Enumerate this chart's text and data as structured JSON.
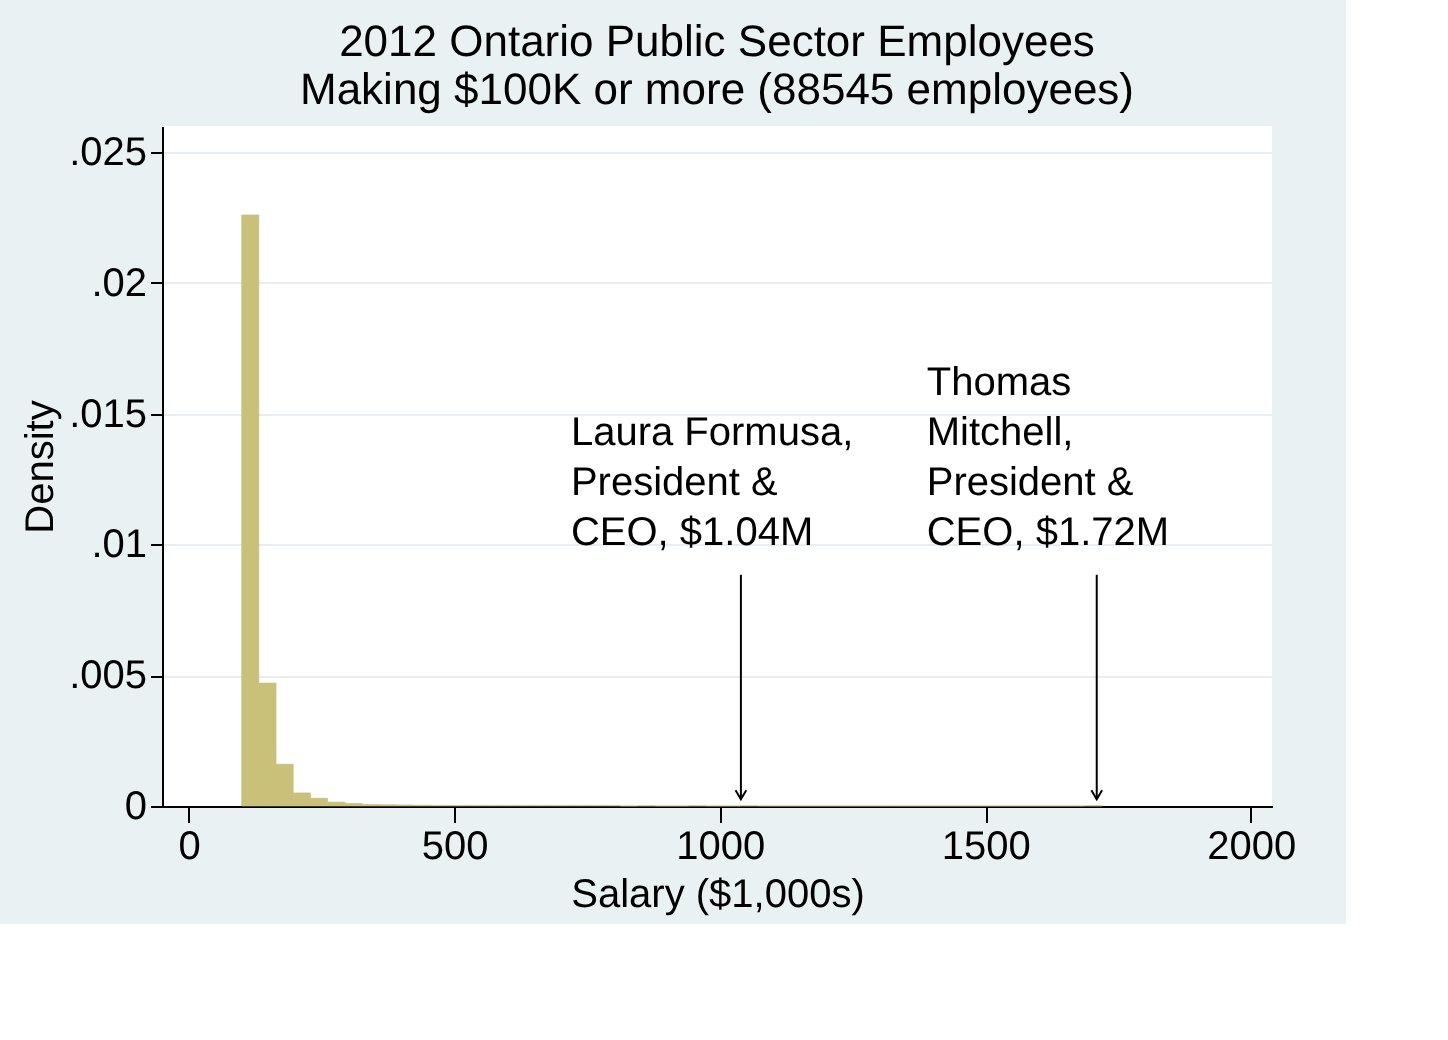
{
  "chart_data": {
    "type": "histogram",
    "title": "2012 Ontario Public Sector Employees\nMaking $100K or more (88545 employees)",
    "xlabel": "Salary ($1,000s)",
    "ylabel": "Density",
    "bins": [
      100,
      132.4,
      164.8,
      197.2,
      229.6,
      262,
      294.4,
      326.8,
      359.2,
      391.6,
      424,
      456.4,
      488.8,
      521.2,
      553.6,
      586,
      618.4,
      650.8,
      683.2,
      715.6,
      748,
      780.4,
      812.8,
      845.2,
      877.6,
      910,
      942.4,
      974.8,
      1007.2,
      1039.6,
      1072,
      1104.4,
      1136.8,
      1169.2,
      1201.6,
      1234,
      1266.4,
      1298.8,
      1331.2,
      1363.6,
      1396,
      1428.4,
      1460.8,
      1493.2,
      1525.6,
      1558,
      1590.4,
      1622.8,
      1655.2,
      1687.6,
      1720
    ],
    "values": [
      0.0226,
      0.0047,
      0.0016,
      0.0005,
      0.0003,
      0.00015,
      0.0001,
      6e-05,
      5e-05,
      4e-05,
      3e-05,
      2e-05,
      2e-05,
      2e-05,
      2e-05,
      2e-05,
      2e-05,
      2e-05,
      2e-05,
      2e-05,
      2e-05,
      2e-05,
      0,
      1e-05,
      0,
      0,
      1e-05,
      0,
      0,
      1e-05,
      0,
      0,
      0,
      0,
      0,
      0,
      0,
      0,
      0,
      0,
      0,
      0,
      0,
      0,
      0,
      0,
      0,
      0,
      0,
      1e-05
    ],
    "color": "#c9c07a",
    "xlim": [
      -50,
      2040
    ],
    "xticks": [
      0,
      500,
      1000,
      1500,
      2000
    ],
    "ylim": [
      0,
      0.026
    ],
    "yticks": [
      {
        "value": 0,
        "label": "0"
      },
      {
        "value": 0.005,
        "label": ".005"
      },
      {
        "value": 0.01,
        "label": ".01"
      },
      {
        "value": 0.015,
        "label": ".015"
      },
      {
        "value": 0.02,
        "label": ".02"
      },
      {
        "value": 0.025,
        "label": ".025"
      }
    ],
    "grid": "y",
    "annotations": [
      {
        "text": "Laura Formusa, President & CEO, $1.04M",
        "x": 1040,
        "y": 0
      },
      {
        "text": "Thomas Mitchell, President & CEO, $1.72M",
        "x": 1710,
        "y": 0
      }
    ]
  }
}
